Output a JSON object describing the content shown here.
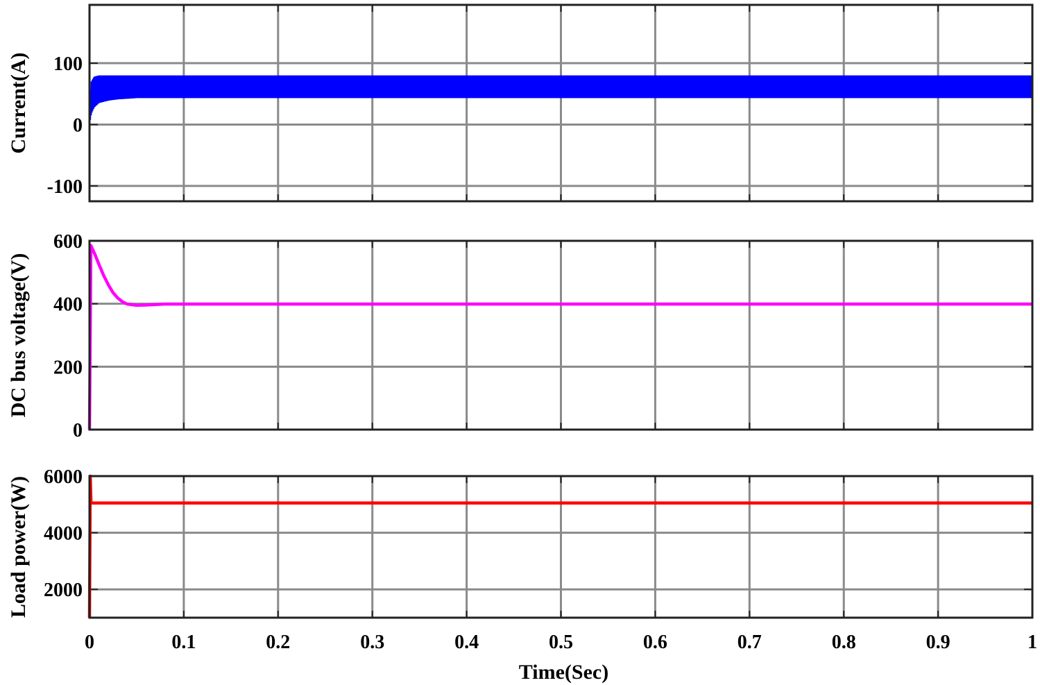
{
  "chart_data": [
    {
      "type": "line",
      "ylabel": "Current(A)",
      "xlim": [
        0,
        1
      ],
      "ylim": [
        -125,
        195
      ],
      "yticks": [
        -100,
        0,
        100
      ],
      "ytick_labels": [
        "-100",
        "0",
        "100"
      ],
      "grid": true,
      "series": [
        {
          "color": "#0000ff",
          "style": "ripple-band",
          "x": [
            0,
            0.002,
            0.005,
            0.01,
            0.02,
            0.03,
            0.05,
            0.1,
            0.2,
            0.3,
            0.4,
            0.5,
            0.6,
            0.7,
            0.8,
            0.9,
            1.0
          ],
          "lower": [
            0,
            18,
            28,
            35,
            39,
            41,
            43,
            43,
            43,
            43,
            43,
            43,
            43,
            43,
            43,
            43,
            43
          ],
          "upper": [
            35,
            70,
            78,
            80,
            80,
            80,
            80,
            80,
            80,
            80,
            80,
            80,
            80,
            80,
            80,
            80,
            80
          ]
        }
      ]
    },
    {
      "type": "line",
      "ylabel": "DC bus voltage(V)",
      "xlim": [
        0,
        1
      ],
      "ylim": [
        0,
        600
      ],
      "yticks": [
        0,
        200,
        400,
        600
      ],
      "ytick_labels": [
        "0",
        "200",
        "400",
        "600"
      ],
      "grid": true,
      "series": [
        {
          "color": "#ff00ff",
          "x": [
            0,
            0.0015,
            0.003,
            0.006,
            0.01,
            0.015,
            0.02,
            0.025,
            0.03,
            0.035,
            0.04,
            0.05,
            0.06,
            0.08,
            0.1,
            1.0
          ],
          "y": [
            0,
            585,
            575,
            555,
            525,
            490,
            460,
            435,
            418,
            406,
            399,
            395,
            396,
            399,
            399,
            399
          ]
        }
      ]
    },
    {
      "type": "line",
      "ylabel": "Load power(W)",
      "xlabel": "Time(Sec)",
      "xlim": [
        0,
        1
      ],
      "ylim": [
        1000,
        6000
      ],
      "yticks": [
        2000,
        4000,
        6000
      ],
      "ytick_labels": [
        "2000",
        "4000",
        "6000"
      ],
      "xticks": [
        0,
        0.1,
        0.2,
        0.3,
        0.4,
        0.5,
        0.6,
        0.7,
        0.8,
        0.9,
        1
      ],
      "xtick_labels": [
        "0",
        "0.1",
        "0.2",
        "0.3",
        "0.4",
        "0.5",
        "0.6",
        "0.7",
        "0.8",
        "0.9",
        "1"
      ],
      "grid": true,
      "series": [
        {
          "color": "#ff0000",
          "x": [
            0,
            0.0008,
            0.0016,
            0.003,
            1.0
          ],
          "y": [
            1000,
            6000,
            5050,
            5050,
            5050
          ]
        }
      ]
    }
  ]
}
